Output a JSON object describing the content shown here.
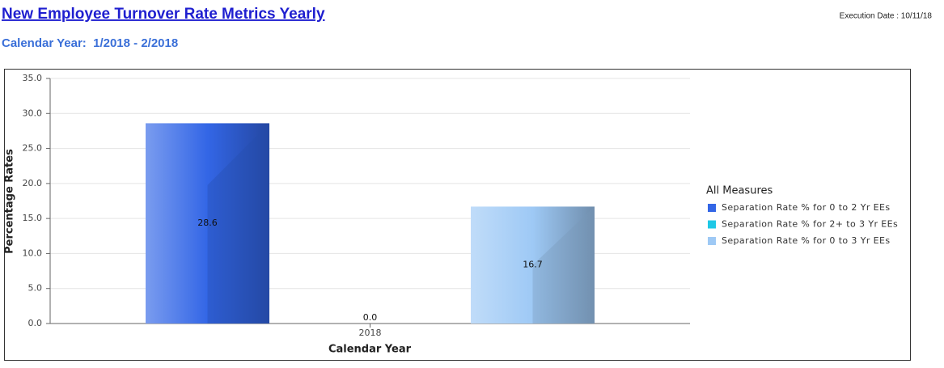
{
  "header": {
    "title": "New Employee Turnover Rate Metrics Yearly",
    "execution_date": "Execution Date : 10/11/18",
    "subtitle": "Calendar Year:  1/2018 - 2/2018"
  },
  "chart_data": {
    "type": "bar",
    "x_label": "Calendar Year",
    "y_label": "Percentage Rates",
    "legend_title": "All Measures",
    "legend_position": "right",
    "categories": [
      "2018"
    ],
    "series": [
      {
        "name": "Separation Rate % for 0 to 2 Yr EEs",
        "color": "#3366e6",
        "values": [
          28.6
        ],
        "value_labels": [
          "28.6"
        ]
      },
      {
        "name": "Separation Rate % for 2+ to 3 Yr EEs",
        "color": "#1ec8e6",
        "values": [
          0
        ],
        "value_labels": [
          "0.0"
        ]
      },
      {
        "name": "Separation Rate % for 0 to 3 Yr EEs",
        "color": "#9ec9f5",
        "values": [
          16.7
        ],
        "value_labels": [
          "16.7"
        ]
      }
    ],
    "ylim": [
      0,
      35
    ],
    "yticks": [
      {
        "value": 0,
        "label": "0.0"
      },
      {
        "value": 5,
        "label": "5.0"
      },
      {
        "value": 10,
        "label": "10.0"
      },
      {
        "value": 15,
        "label": "15.0"
      },
      {
        "value": 20,
        "label": "20.0"
      },
      {
        "value": 25,
        "label": "25.0"
      },
      {
        "value": 30,
        "label": "30.0"
      },
      {
        "value": 35,
        "label": "35.0"
      }
    ],
    "grid": true
  }
}
